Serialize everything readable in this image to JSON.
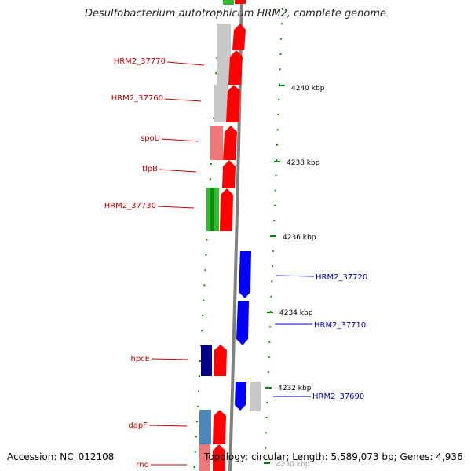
{
  "title": "Desulfobacterium autotrophicum HRM2, complete genome",
  "footer": {
    "accession": "Accession: NC_012108",
    "summary": "Topology: circular; Length: 5,589,073 bp; Genes: 4,936"
  },
  "colors": {
    "reverse_label": "#cc0000",
    "forward_label": "#0000cc",
    "red": "#ff0000",
    "grey": "#c8c8c8",
    "pink": "#ee7777",
    "green": "#33bb33",
    "navy": "#000088",
    "blue": "#0000ff",
    "steel": "#4d86b8",
    "tick": "#008800",
    "backbone": "#888888"
  },
  "kbp_ticks": [
    "4240 kbp",
    "4238 kbp",
    "4236 kbp",
    "4234 kbp",
    "4232 kbp",
    "4230 kbp"
  ],
  "reverse_labels": [
    "HRM2_37770",
    "HRM2_37760",
    "spoU",
    "tlpB",
    "HRM2_37730",
    "hpcE",
    "dapF",
    "rnd"
  ],
  "forward_labels": [
    "HRM2_37720",
    "HRM2_37710",
    "HRM2_37690"
  ]
}
